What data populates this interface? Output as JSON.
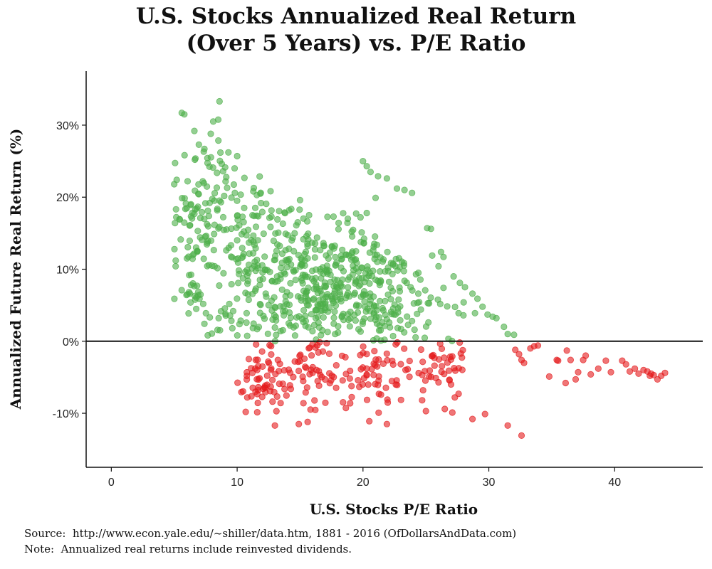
{
  "chart_data": {
    "type": "scatter",
    "title_line1": "U.S. Stocks Annualized Real Return",
    "title_line2": "(Over 5 Years) vs. P/E Ratio",
    "xlabel": "U.S. Stocks P/E Ratio",
    "ylabel": "Annualized Future Real Return (%)",
    "xlim": [
      -2,
      47
    ],
    "ylim": [
      -17.5,
      37.5
    ],
    "x_ticks": [
      0,
      10,
      20,
      30,
      40
    ],
    "x_tick_labels": [
      "0",
      "10",
      "20",
      "30",
      "40"
    ],
    "y_ticks": [
      -10,
      0,
      10,
      20,
      30
    ],
    "y_tick_labels": [
      "-10%",
      "0%",
      "10%",
      "20%",
      "30%"
    ],
    "reference_line_y": 0,
    "colors": {
      "positive": "#4daf4a",
      "negative": "#e41a1c"
    },
    "grid": false,
    "legend": "none",
    "clusters": [
      {
        "cx": 16.5,
        "cy": 8,
        "sx": 3.4,
        "sy": 4.5,
        "n": 300
      },
      {
        "cx": 11.5,
        "cy": 13,
        "sx": 2.2,
        "sy": 4.5,
        "n": 110
      },
      {
        "cx": 8.5,
        "cy": 20,
        "sx": 1.3,
        "sy": 5,
        "n": 70
      },
      {
        "cx": 6.2,
        "cy": 16,
        "sx": 0.8,
        "sy": 4.5,
        "n": 40
      },
      {
        "cx": 6.6,
        "cy": 7,
        "sx": 0.5,
        "sy": 1.2,
        "n": 20
      },
      {
        "cx": 20.5,
        "cy": 10,
        "sx": 2.5,
        "sy": 3.5,
        "n": 90
      },
      {
        "cx": 22,
        "cy": 3,
        "sx": 2.2,
        "sy": 2.2,
        "n": 60
      },
      {
        "cx": 13,
        "cy": 3,
        "sx": 2.5,
        "sy": 1.8,
        "n": 60
      },
      {
        "cx": 12,
        "cy": -6,
        "sx": 1.5,
        "sy": 2.8,
        "n": 60
      },
      {
        "cx": 17.5,
        "cy": -5,
        "sx": 2.5,
        "sy": 2.5,
        "n": 65
      },
      {
        "cx": 22.5,
        "cy": -5,
        "sx": 2,
        "sy": 2.5,
        "n": 40
      },
      {
        "cx": 26.5,
        "cy": -2.5,
        "sx": 0.8,
        "sy": 1.5,
        "n": 30
      }
    ],
    "points": [
      [
        5.6,
        31.7
      ],
      [
        5.8,
        31.5
      ],
      [
        8.6,
        33.3
      ],
      [
        8.1,
        30.5
      ],
      [
        7.9,
        28.8
      ],
      [
        7.4,
        26.7
      ],
      [
        6.6,
        29.2
      ],
      [
        5.0,
        21.8
      ],
      [
        5.2,
        22.4
      ],
      [
        10.0,
        25.7
      ],
      [
        9.8,
        24.0
      ],
      [
        20.0,
        25.0
      ],
      [
        20.3,
        24.3
      ],
      [
        20.6,
        23.5
      ],
      [
        21.2,
        22.9
      ],
      [
        21.9,
        22.6
      ],
      [
        22.7,
        21.2
      ],
      [
        23.3,
        21.0
      ],
      [
        23.9,
        20.6
      ],
      [
        19.8,
        17.2
      ],
      [
        20.3,
        17.8
      ],
      [
        21.0,
        19.9
      ],
      [
        18.8,
        17.0
      ],
      [
        25.1,
        15.7
      ],
      [
        25.4,
        15.6
      ],
      [
        25.5,
        11.9
      ],
      [
        26.2,
        12.4
      ],
      [
        26.0,
        10.4
      ],
      [
        26.4,
        11.7
      ],
      [
        24.4,
        9.5
      ],
      [
        27.2,
        9.0
      ],
      [
        27.7,
        8.1
      ],
      [
        26.4,
        7.4
      ],
      [
        28.1,
        7.5
      ],
      [
        28.7,
        6.6
      ],
      [
        29.1,
        5.9
      ],
      [
        29.5,
        4.8
      ],
      [
        28.0,
        5.4
      ],
      [
        27.6,
        3.9
      ],
      [
        28.9,
        3.9
      ],
      [
        29.9,
        3.7
      ],
      [
        30.3,
        3.4
      ],
      [
        30.6,
        3.2
      ],
      [
        31.2,
        2.0
      ],
      [
        31.5,
        1.0
      ],
      [
        32.0,
        0.9
      ],
      [
        24.6,
        4.4
      ],
      [
        24.3,
        3.8
      ],
      [
        23.9,
        2.8
      ],
      [
        25.2,
        2.6
      ],
      [
        32.1,
        -1.2
      ],
      [
        32.4,
        -1.8
      ],
      [
        32.6,
        -2.6
      ],
      [
        32.8,
        -3.0
      ],
      [
        33.3,
        -1.0
      ],
      [
        33.6,
        -0.7
      ],
      [
        33.9,
        -0.6
      ],
      [
        34.8,
        -4.9
      ],
      [
        35.4,
        -2.6
      ],
      [
        35.5,
        -2.7
      ],
      [
        36.2,
        -1.3
      ],
      [
        36.5,
        -2.6
      ],
      [
        36.1,
        -5.8
      ],
      [
        36.9,
        -5.3
      ],
      [
        37.1,
        -4.3
      ],
      [
        37.5,
        -2.6
      ],
      [
        37.7,
        -2.0
      ],
      [
        38.1,
        -4.6
      ],
      [
        38.7,
        -3.8
      ],
      [
        39.3,
        -2.7
      ],
      [
        39.7,
        -4.3
      ],
      [
        40.6,
        -2.7
      ],
      [
        40.9,
        -3.2
      ],
      [
        41.6,
        -3.8
      ],
      [
        41.9,
        -4.5
      ],
      [
        42.3,
        -4.0
      ],
      [
        42.6,
        -4.2
      ],
      [
        42.8,
        -4.8
      ],
      [
        43.1,
        -4.7
      ],
      [
        43.4,
        -5.3
      ],
      [
        43.7,
        -4.8
      ],
      [
        44.0,
        -4.4
      ],
      [
        42.9,
        -4.5
      ],
      [
        41.2,
        -4.2
      ],
      [
        32.6,
        -13.1
      ],
      [
        31.5,
        -11.7
      ],
      [
        29.7,
        -10.1
      ],
      [
        28.7,
        -10.8
      ],
      [
        27.1,
        -9.9
      ],
      [
        26.5,
        -9.4
      ],
      [
        25.0,
        -9.7
      ],
      [
        24.7,
        -8.2
      ],
      [
        13.0,
        -11.7
      ],
      [
        14.9,
        -11.5
      ],
      [
        15.6,
        -11.2
      ],
      [
        20.5,
        -11.1
      ],
      [
        21.9,
        -11.5
      ],
      [
        26.0,
        -5.7
      ],
      [
        27.3,
        -7.8
      ],
      [
        27.6,
        -7.3
      ],
      [
        27.0,
        -6.0
      ]
    ]
  }
}
